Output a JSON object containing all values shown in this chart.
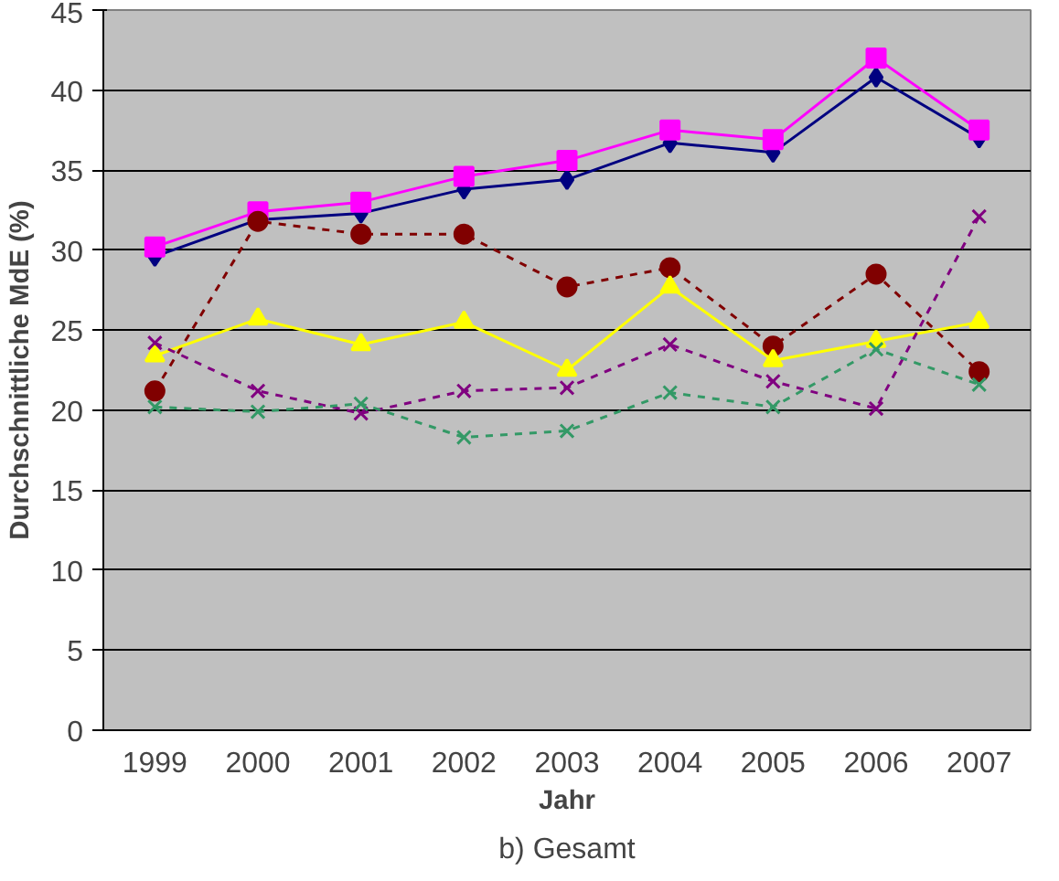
{
  "chart_data": {
    "type": "line",
    "title": "b) Gesamt",
    "xlabel": "Jahr",
    "ylabel": "Durchschnittliche MdE (%)",
    "categories": [
      "1999",
      "2000",
      "2001",
      "2002",
      "2003",
      "2004",
      "2005",
      "2006",
      "2007"
    ],
    "ylim": [
      0,
      45
    ],
    "yticks": [
      0,
      5,
      10,
      15,
      20,
      25,
      30,
      35,
      40,
      45
    ],
    "grid": "y",
    "series": [
      {
        "color": "#000080",
        "marker": "diamond",
        "line_style": "solid",
        "values": [
          29.6,
          31.9,
          32.3,
          33.8,
          34.4,
          36.7,
          36.1,
          40.8,
          37.0
        ]
      },
      {
        "color": "#ff00ff",
        "marker": "square",
        "line_style": "solid",
        "values": [
          30.2,
          32.4,
          33.0,
          34.6,
          35.6,
          37.5,
          36.9,
          42.0,
          37.5
        ]
      },
      {
        "color": "#800000",
        "marker": "circle",
        "line_style": "dotted",
        "values": [
          21.2,
          31.8,
          31.0,
          31.0,
          27.7,
          28.9,
          24.0,
          28.5,
          22.4
        ]
      },
      {
        "color": "#ffff00",
        "marker": "triangle",
        "line_style": "solid",
        "values": [
          23.4,
          25.7,
          24.1,
          25.5,
          22.5,
          27.7,
          23.1,
          24.3,
          25.5
        ]
      },
      {
        "color": "#800080",
        "marker": "cross",
        "line_style": "dotted",
        "values": [
          24.2,
          21.2,
          19.8,
          21.2,
          21.4,
          24.1,
          21.8,
          20.1,
          32.1
        ]
      },
      {
        "color": "#339966",
        "marker": "cross",
        "line_style": "dotted",
        "values": [
          20.2,
          19.9,
          20.4,
          18.3,
          18.7,
          21.1,
          20.2,
          23.8,
          21.6
        ]
      }
    ]
  }
}
